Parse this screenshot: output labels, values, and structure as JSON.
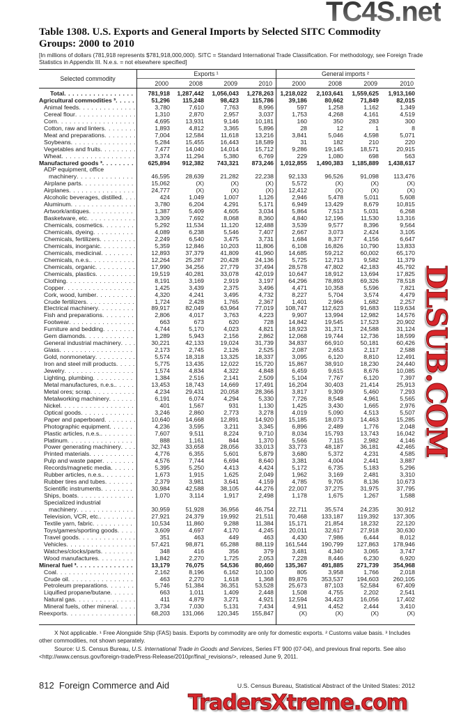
{
  "watermarks": {
    "top": "TC4S.net",
    "middle": "DLSUB.COM",
    "bottom": "TradersXtreme.com"
  },
  "title": "Table 1308. U.S. Exports and General Imports by Selected SITC Commodity Groups: 2000 to 2010",
  "headnote": "[In millions of dollars (781,918 represents $781,918,000,000). SITC = Standard International Trade Classification. For methodology, see Foreign Trade Statistics in Appendix III. N.e.s. = not elsewhere specified]",
  "header": {
    "stub": "Selected commodity",
    "exports": "Exports ¹",
    "imports": "General imports ²",
    "years": [
      "2000",
      "2008",
      "2009",
      "2010",
      "2000",
      "2008",
      "2009",
      "2010"
    ]
  },
  "rows": [
    {
      "label": "Total",
      "level": 1,
      "bold": true,
      "values": [
        "781,918",
        "1,287,442",
        "1,056,043",
        "1,278,263",
        "1,218,022",
        "2,103,641",
        "1,559,625",
        "1,913,160"
      ]
    },
    {
      "label": "Agricultural commodities ³",
      "level": 0,
      "bold": true,
      "values": [
        "51,296",
        "115,248",
        "98,423",
        "115,786",
        "39,186",
        "80,662",
        "71,849",
        "82,015"
      ]
    },
    {
      "label": "Animal feeds",
      "level": 1,
      "values": [
        "3,780",
        "7,610",
        "7,763",
        "8,996",
        "597",
        "1,258",
        "1,162",
        "1,349"
      ]
    },
    {
      "label": "Cereal flour",
      "level": 1,
      "values": [
        "1,310",
        "2,870",
        "2,957",
        "3,037",
        "1,753",
        "4,268",
        "4,161",
        "4,519"
      ]
    },
    {
      "label": "Corn",
      "level": 1,
      "values": [
        "4,695",
        "13,931",
        "9,146",
        "10,181",
        "160",
        "350",
        "283",
        "300"
      ]
    },
    {
      "label": "Cotton, raw and linters",
      "level": 1,
      "values": [
        "1,893",
        "4,812",
        "3,365",
        "5,896",
        "28",
        "12",
        "1",
        "8"
      ]
    },
    {
      "label": "Meat and preparations",
      "level": 1,
      "values": [
        "7,004",
        "12,584",
        "11,618",
        "13,216",
        "3,841",
        "5,046",
        "4,598",
        "5,071"
      ]
    },
    {
      "label": "Soybeans",
      "level": 1,
      "values": [
        "5,284",
        "15,455",
        "16,443",
        "18,589",
        "31",
        "182",
        "210",
        "220"
      ]
    },
    {
      "label": "Vegetables and fruits",
      "level": 1,
      "values": [
        "7,477",
        "14,040",
        "14,014",
        "15,712",
        "9,286",
        "19,145",
        "18,571",
        "20,915"
      ]
    },
    {
      "label": "Wheat",
      "level": 1,
      "values": [
        "3,374",
        "11,294",
        "5,380",
        "6,769",
        "229",
        "1,080",
        "698",
        "563"
      ]
    },
    {
      "label": "Manufactured goods ³",
      "level": 0,
      "bold": true,
      "values": [
        "625,894",
        "912,382",
        "743,321",
        "873,246",
        "1,012,855",
        "1,490,383",
        "1,185,889",
        "1,438,617"
      ]
    },
    {
      "label": "ADP equipment, office",
      "label2": "machinery",
      "level": 1,
      "values": [
        "46,595",
        "28,639",
        "21,282",
        "22,238",
        "92,133",
        "96,526",
        "91,098",
        "113,476"
      ]
    },
    {
      "label": "Airplane parts",
      "level": 1,
      "values": [
        "15,062",
        "(X)",
        "(X)",
        "(X)",
        "5,572",
        "(X)",
        "(X)",
        "(X)"
      ]
    },
    {
      "label": "Airplanes",
      "level": 1,
      "values": [
        "24,777",
        "(X)",
        "(X)",
        "(X)",
        "12,412",
        "(X)",
        "(X)",
        "(X)"
      ]
    },
    {
      "label": "Alcoholic beverages, distilled",
      "level": 1,
      "values": [
        "424",
        "1,049",
        "1,007",
        "1,126",
        "2,946",
        "5,478",
        "5,011",
        "5,608"
      ]
    },
    {
      "label": "Aluminum",
      "level": 1,
      "values": [
        "3,780",
        "6,204",
        "4,291",
        "5,171",
        "6,949",
        "13,429",
        "8,679",
        "10,815"
      ]
    },
    {
      "label": "Artwork/antiques",
      "level": 1,
      "values": [
        "1,387",
        "5,409",
        "4,605",
        "3,034",
        "5,864",
        "7,513",
        "5,031",
        "6,268"
      ]
    },
    {
      "label": "Basketware, etc",
      "level": 1,
      "values": [
        "3,309",
        "7,692",
        "8,068",
        "8,360",
        "4,840",
        "12,196",
        "11,530",
        "13,316"
      ]
    },
    {
      "label": "Chemicals, cosmetics",
      "level": 1,
      "values": [
        "5,292",
        "11,534",
        "11,120",
        "12,488",
        "3,539",
        "9,577",
        "8,396",
        "9,564"
      ]
    },
    {
      "label": "Chemicals, dyeing",
      "level": 1,
      "values": [
        "4,089",
        "6,238",
        "5,546",
        "7,407",
        "2,667",
        "3,073",
        "2,424",
        "3,105"
      ]
    },
    {
      "label": "Chemicals, fertilizers",
      "level": 1,
      "values": [
        "2,249",
        "6,540",
        "3,475",
        "3,731",
        "1,684",
        "8,377",
        "4,156",
        "6,647"
      ]
    },
    {
      "label": "Chemicals, inorganic",
      "level": 1,
      "values": [
        "5,359",
        "12,846",
        "10,203",
        "11,806",
        "6,108",
        "16,826",
        "10,790",
        "13,833"
      ]
    },
    {
      "label": "Chemicals, medicinal",
      "level": 1,
      "values": [
        "12,893",
        "37,379",
        "41,809",
        "41,960",
        "14,685",
        "59,212",
        "60,002",
        "65,170"
      ]
    },
    {
      "label": "Chemicals, n.e.s.",
      "level": 1,
      "values": [
        "12,264",
        "25,287",
        "20,428",
        "24,136",
        "5,725",
        "12,713",
        "9,582",
        "11,379"
      ]
    },
    {
      "label": "Chemicals, organic",
      "level": 1,
      "values": [
        "17,990",
        "34,256",
        "27,779",
        "37,494",
        "28,578",
        "47,802",
        "42,183",
        "45,792"
      ]
    },
    {
      "label": "Chemicals, plastics",
      "level": 1,
      "values": [
        "19,519",
        "40,281",
        "33,078",
        "42,019",
        "10,647",
        "18,912",
        "13,694",
        "17,825"
      ]
    },
    {
      "label": "Clothing",
      "level": 1,
      "values": [
        "8,191",
        "3,169",
        "2,919",
        "3,197",
        "64,296",
        "78,893",
        "69,326",
        "78,518"
      ]
    },
    {
      "label": "Copper",
      "level": 1,
      "values": [
        "1,425",
        "3,439",
        "2,375",
        "3,496",
        "4,471",
        "10,358",
        "5,596",
        "7,821"
      ]
    },
    {
      "label": "Cork, wood, lumber",
      "level": 1,
      "values": [
        "4,320",
        "4,241",
        "3,495",
        "4,732",
        "8,227",
        "5,704",
        "3,574",
        "4,479"
      ]
    },
    {
      "label": "Crude fertilizers",
      "level": 1,
      "values": [
        "1,724",
        "2,428",
        "1,765",
        "2,367",
        "1,401",
        "2,966",
        "1,682",
        "2,257"
      ]
    },
    {
      "label": "Electrical machinery",
      "level": 1,
      "values": [
        "89,917",
        "82,049",
        "63,964",
        "77,019",
        "108,747",
        "112,623",
        "91,683",
        "119,634"
      ]
    },
    {
      "label": "Fish and preparations",
      "level": 1,
      "values": [
        "2,806",
        "4,017",
        "3,763",
        "4,223",
        "9,907",
        "13,994",
        "12,982",
        "14,576"
      ]
    },
    {
      "label": "Footwear",
      "level": 1,
      "values": [
        "663",
        "673",
        "620",
        "728",
        "14,842",
        "19,545",
        "17,523",
        "20,902"
      ]
    },
    {
      "label": "Furniture and bedding",
      "level": 1,
      "values": [
        "4,744",
        "5,170",
        "4,023",
        "4,821",
        "18,923",
        "31,371",
        "24,588",
        "31,124"
      ]
    },
    {
      "label": "Gem diamonds",
      "level": 1,
      "values": [
        "1,289",
        "5,943",
        "2,156",
        "2,862",
        "12,068",
        "19,744",
        "12,736",
        "18,599"
      ]
    },
    {
      "label": "General industrial machinery",
      "level": 1,
      "values": [
        "30,221",
        "42,133",
        "19,024",
        "31,739",
        "34,837",
        "66,910",
        "50,181",
        "60,426"
      ]
    },
    {
      "label": "Glass",
      "level": 1,
      "values": [
        "2,173",
        "2,745",
        "2,126",
        "2,525",
        "2,087",
        "2,653",
        "2,117",
        "2,588"
      ]
    },
    {
      "label": "Gold, nonmonetary",
      "level": 1,
      "values": [
        "5,574",
        "18,318",
        "13,325",
        "18,337",
        "3,095",
        "6,120",
        "8,810",
        "12,491"
      ]
    },
    {
      "label": "Iron and steel mill products",
      "level": 1,
      "values": [
        "5,775",
        "13,435",
        "12,022",
        "15,720",
        "15,867",
        "38,910",
        "18,230",
        "24,440"
      ]
    },
    {
      "label": "Jewelry",
      "level": 1,
      "values": [
        "1,574",
        "4,834",
        "4,322",
        "4,848",
        "6,459",
        "9,615",
        "8,676",
        "10,085"
      ]
    },
    {
      "label": "Lighting, plumbing",
      "level": 1,
      "values": [
        "1,384",
        "2,516",
        "2,141",
        "2,509",
        "5,104",
        "7,767",
        "6,120",
        "7,397"
      ]
    },
    {
      "label": "Metal manufactures, n.e.s.",
      "level": 1,
      "values": [
        "13,453",
        "18,743",
        "14,669",
        "17,491",
        "16,204",
        "30,403",
        "21,414",
        "25,913"
      ]
    },
    {
      "label": "Metal ores; scrap",
      "level": 1,
      "values": [
        "4,234",
        "29,431",
        "20,058",
        "28,366",
        "3,817",
        "9,309",
        "5,460",
        "7,293"
      ]
    },
    {
      "label": "Metalworking machinery",
      "level": 1,
      "values": [
        "6,191",
        "6,074",
        "4,294",
        "5,330",
        "7,726",
        "8,548",
        "4,961",
        "5,565"
      ]
    },
    {
      "label": "Nickel",
      "level": 1,
      "values": [
        "401",
        "1,567",
        "931",
        "1,130",
        "1,425",
        "3,430",
        "1,665",
        "2,976"
      ]
    },
    {
      "label": "Optical goods",
      "level": 1,
      "values": [
        "3,246",
        "2,860",
        "2,773",
        "3,278",
        "4,019",
        "5,090",
        "4,513",
        "5,507"
      ]
    },
    {
      "label": "Paper and paperboard",
      "level": 1,
      "values": [
        "10,640",
        "14,668",
        "12,891",
        "14,920",
        "15,185",
        "18,073",
        "14,463",
        "15,285"
      ]
    },
    {
      "label": "Photographic equipment",
      "level": 1,
      "values": [
        "4,236",
        "3,595",
        "3,211",
        "3,345",
        "6,896",
        "2,489",
        "1,776",
        "2,048"
      ]
    },
    {
      "label": "Plastic articles, n.e.s.",
      "level": 1,
      "values": [
        "7,607",
        "9,511",
        "8,224",
        "9,710",
        "8,034",
        "15,793",
        "13,743",
        "16,042"
      ]
    },
    {
      "label": "Platinum",
      "level": 1,
      "values": [
        "888",
        "1,161",
        "844",
        "1,370",
        "5,566",
        "7,115",
        "2,982",
        "4,146"
      ]
    },
    {
      "label": "Power generating machinery",
      "level": 1,
      "values": [
        "32,743",
        "33,658",
        "28,056",
        "33,013",
        "33,773",
        "48,187",
        "36,181",
        "42,465"
      ]
    },
    {
      "label": "Printed materials",
      "level": 1,
      "values": [
        "4,776",
        "6,355",
        "5,601",
        "5,879",
        "3,680",
        "5,372",
        "4,231",
        "4,585"
      ]
    },
    {
      "label": "Pulp and waste paper",
      "level": 1,
      "values": [
        "4,576",
        "7,744",
        "6,694",
        "8,640",
        "3,381",
        "4,004",
        "2,441",
        "3,887"
      ]
    },
    {
      "label": "Records/magnetic media",
      "level": 1,
      "values": [
        "5,395",
        "5,250",
        "4,413",
        "4,424",
        "5,172",
        "6,735",
        "5,183",
        "5,296"
      ]
    },
    {
      "label": "Rubber articles, n.e.s.",
      "level": 1,
      "values": [
        "1,673",
        "1,915",
        "1,625",
        "2,049",
        "1,962",
        "3,169",
        "2,481",
        "3,310"
      ]
    },
    {
      "label": "Rubber tires and tubes",
      "level": 1,
      "values": [
        "2,379",
        "3,981",
        "3,641",
        "4,159",
        "4,785",
        "9,705",
        "8,136",
        "10,673"
      ]
    },
    {
      "label": "Scientific instruments",
      "level": 1,
      "values": [
        "30,984",
        "42,588",
        "38,105",
        "44,276",
        "22,007",
        "37,275",
        "31,975",
        "37,795"
      ]
    },
    {
      "label": "Ships, boats",
      "level": 1,
      "values": [
        "1,070",
        "3,114",
        "1,917",
        "2,498",
        "1,178",
        "1,675",
        "1,267",
        "1,588"
      ]
    },
    {
      "label": "Specialized industrial",
      "label2": "machinery",
      "level": 1,
      "values": [
        "30,959",
        "51,928",
        "36,956",
        "46,754",
        "22,711",
        "35,574",
        "24,235",
        "30,912"
      ]
    },
    {
      "label": "Television, VCR, etc.",
      "level": 1,
      "values": [
        "27,921",
        "24,379",
        "19,992",
        "21,511",
        "70,468",
        "133,187",
        "119,392",
        "137,305"
      ]
    },
    {
      "label": "Textile yarn, fabric",
      "level": 1,
      "values": [
        "10,534",
        "11,860",
        "9,288",
        "11,384",
        "15,171",
        "21,854",
        "18,232",
        "22,120"
      ]
    },
    {
      "label": "Toys/games/sporting goods",
      "level": 1,
      "values": [
        "3,609",
        "4,697",
        "4,170",
        "4,245",
        "20,011",
        "32,617",
        "27,918",
        "30,630"
      ]
    },
    {
      "label": "Travel goods",
      "level": 1,
      "values": [
        "351",
        "463",
        "449",
        "463",
        "4,430",
        "7,986",
        "6,444",
        "8,012"
      ]
    },
    {
      "label": "Vehicles",
      "level": 1,
      "values": [
        "57,421",
        "98,871",
        "65,288",
        "88,119",
        "161,544",
        "190,799",
        "127,863",
        "178,946"
      ]
    },
    {
      "label": "Watches/clocks/parts",
      "level": 1,
      "values": [
        "348",
        "416",
        "356",
        "379",
        "3,481",
        "4,340",
        "3,065",
        "3,747"
      ]
    },
    {
      "label": "Wood manufactures",
      "level": 1,
      "values": [
        "1,842",
        "2,270",
        "1,725",
        "2,053",
        "7,228",
        "8,446",
        "6,230",
        "6,920"
      ]
    },
    {
      "label": "Mineral fuel ³",
      "level": 0,
      "bold": true,
      "values": [
        "13,179",
        "76,075",
        "54,536",
        "80,460",
        "135,367",
        "491,885",
        "271,739",
        "354,968"
      ]
    },
    {
      "label": "Coal",
      "level": 1,
      "values": [
        "2,162",
        "8,196",
        "6,162",
        "10,100",
        "805",
        "3,958",
        "1,766",
        "2,018"
      ]
    },
    {
      "label": "Crude oil",
      "level": 1,
      "values": [
        "463",
        "2,270",
        "1,618",
        "1,368",
        "89,876",
        "353,537",
        "194,603",
        "260,105"
      ]
    },
    {
      "label": "Petroleum preparations",
      "level": 1,
      "values": [
        "5,746",
        "51,384",
        "36,351",
        "53,528",
        "25,673",
        "87,103",
        "52,584",
        "67,409"
      ]
    },
    {
      "label": "Liquified propane/butane",
      "level": 1,
      "values": [
        "663",
        "1,011",
        "1,409",
        "2,448",
        "1,508",
        "4,755",
        "2,202",
        "2,541"
      ]
    },
    {
      "label": "Natural gas",
      "level": 1,
      "values": [
        "411",
        "4,879",
        "3,271",
        "4,921",
        "12,594",
        "34,423",
        "16,056",
        "17,402"
      ]
    },
    {
      "label": "Mineral fuels, other mineral",
      "level": 1,
      "values": [
        "3,734",
        "7,030",
        "5,131",
        "7,434",
        "4,911",
        "4,452",
        "2,444",
        "3,410"
      ]
    },
    {
      "label": "Reexports",
      "level": 0,
      "values": [
        "68,203",
        "131,066",
        "120,345",
        "155,847",
        "(X)",
        "(X)",
        "(X)",
        "(X)"
      ]
    }
  ],
  "footnotes": {
    "notes": "X Not applicable. ¹ Free Alongside Ship (FAS) basis. Exports by commodity are only for domestic exports. ² Customs value basis. ³ Includes other commodities, not shown separately.",
    "source_prefix": "Source: U.S. Census Bureau, ",
    "source_title": "U.S. International Trade in Goods and Services",
    "source_suffix": ", Series FT 900 (07-04), and previous final reports. See also <http://www.census.gov/foreign-trade/Press-Release/2010pr/final_revisions/>, released June 9, 2011."
  },
  "footer": {
    "page": "812  Foreign Commerce and Aid",
    "publication": "U.S. Census Bureau, Statistical Abstract of the United States: 2012"
  }
}
